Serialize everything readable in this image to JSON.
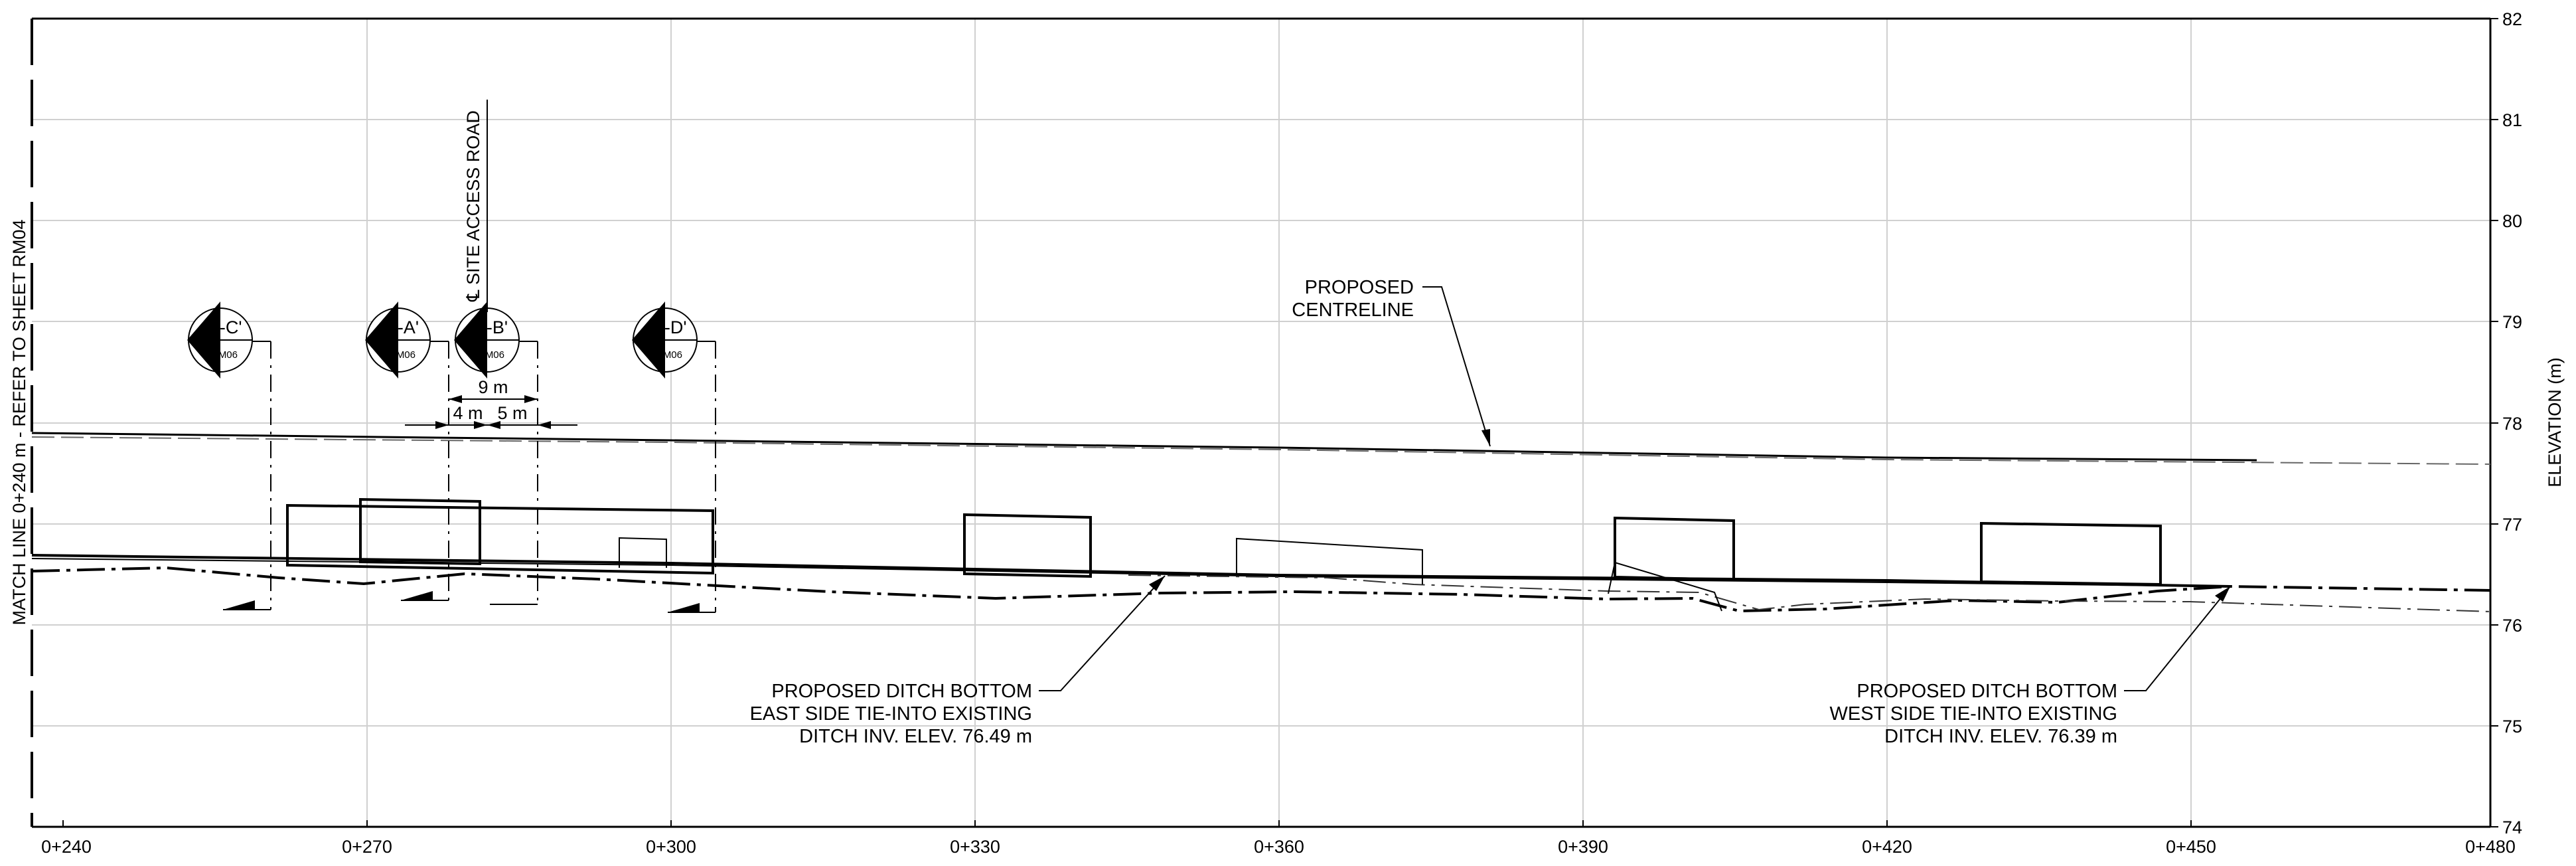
{
  "drawing": {
    "type": "road profile",
    "match_line_label": "MATCH LINE 0+240 m - REFER TO SHEET RM04",
    "y_axis_label": "ELEVATION (m)",
    "station_labels": [
      "0+240",
      "0+270",
      "0+300",
      "0+330",
      "0+360",
      "0+390",
      "0+420",
      "0+450",
      "0+480"
    ],
    "elevation_labels": [
      "82",
      "81",
      "80",
      "79",
      "78",
      "77",
      "76",
      "75",
      "74"
    ],
    "access_road_label": "℄ SITE ACCESS ROAD",
    "section_markers": [
      {
        "id": "C-C'",
        "sheet": "RM06"
      },
      {
        "id": "A-A'",
        "sheet": "RM06"
      },
      {
        "id": "B-B'",
        "sheet": "RM06"
      },
      {
        "id": "D-D'",
        "sheet": "RM06"
      }
    ],
    "dimensions": {
      "total": "9 m",
      "left": "4 m",
      "right": "5 m"
    },
    "annotations": {
      "centreline": [
        "PROPOSED",
        "CENTRELINE"
      ],
      "east_ditch": [
        "PROPOSED DITCH BOTTOM",
        "EAST SIDE TIE-INTO EXISTING",
        "DITCH INV. ELEV. 76.49 m"
      ],
      "west_ditch": [
        "PROPOSED DITCH BOTTOM",
        "WEST SIDE TIE-INTO EXISTING",
        "DITCH INV. ELEV. 76.39 m"
      ]
    }
  }
}
